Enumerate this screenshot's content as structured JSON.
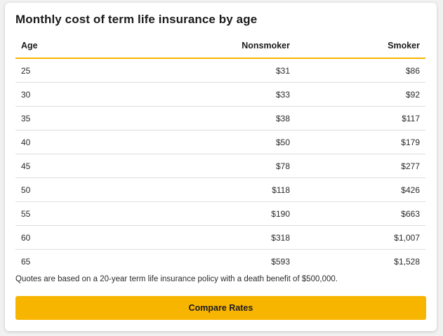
{
  "card": {
    "title": "Monthly cost of term life insurance by age",
    "columns": [
      "Age",
      "Nonsmoker",
      "Smoker"
    ],
    "rows": [
      [
        "25",
        "$31",
        "$86"
      ],
      [
        "30",
        "$33",
        "$92"
      ],
      [
        "35",
        "$38",
        "$117"
      ],
      [
        "40",
        "$50",
        "$179"
      ],
      [
        "45",
        "$78",
        "$277"
      ],
      [
        "50",
        "$118",
        "$426"
      ],
      [
        "55",
        "$190",
        "$663"
      ],
      [
        "60",
        "$318",
        "$1,007"
      ],
      [
        "65",
        "$593",
        "$1,528"
      ]
    ],
    "note": "Quotes are based on a 20-year term life insurance policy with a death benefit of $500,000.",
    "button_label": "Compare Rates"
  },
  "colors": {
    "accent": "#f8b500",
    "background": "#f1f1f1",
    "card": "#ffffff"
  }
}
